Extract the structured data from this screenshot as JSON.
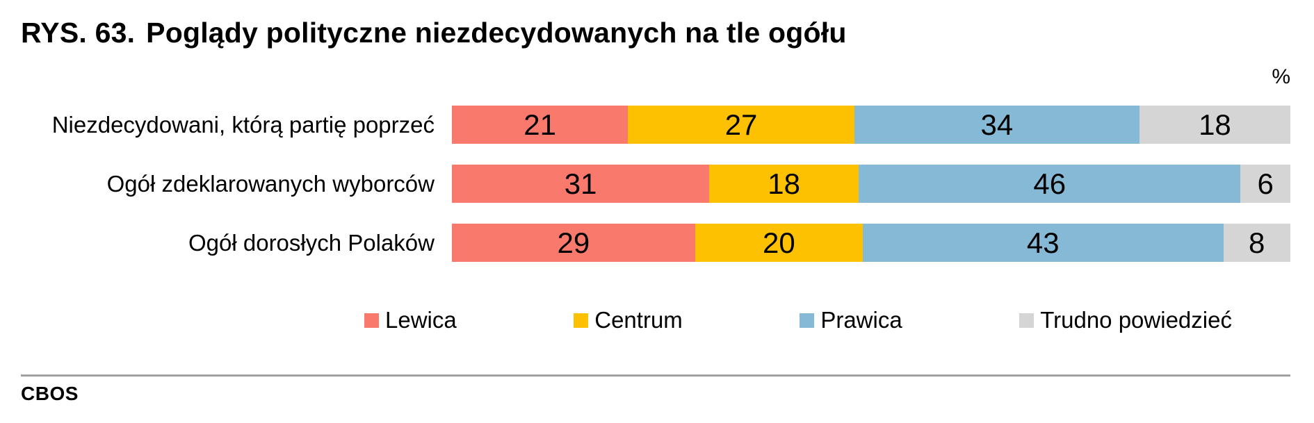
{
  "title": {
    "prefix": "RYS. 63.",
    "text": "Poglądy polityczne niezdecydowanych na tle ogółu"
  },
  "unit_label": "%",
  "footer": {
    "brand": "CBOS"
  },
  "colors": {
    "lewica": "#F9796C",
    "centrum": "#FDC101",
    "prawica": "#85B9D6",
    "trudno_powiedziec": "#D5D5D5",
    "rule": "#9a9a9a"
  },
  "chart_data": {
    "type": "bar",
    "subtype": "horizontal-stacked",
    "unit": "%",
    "xlim": [
      0,
      100
    ],
    "grid": false,
    "legend_position": "bottom",
    "categories": [
      "Niezdecydowani, którą partię poprzeć",
      "Ogół zdeklarowanych wyborców",
      "Ogół dorosłych Polaków"
    ],
    "series": [
      {
        "name": "Lewica",
        "color": "#F9796C",
        "values": [
          21,
          31,
          29
        ]
      },
      {
        "name": "Centrum",
        "color": "#FDC101",
        "values": [
          27,
          18,
          20
        ]
      },
      {
        "name": "Prawica",
        "color": "#85B9D6",
        "values": [
          34,
          46,
          43
        ]
      },
      {
        "name": "Trudno powiedzieć",
        "color": "#D5D5D5",
        "values": [
          18,
          6,
          8
        ]
      }
    ]
  }
}
